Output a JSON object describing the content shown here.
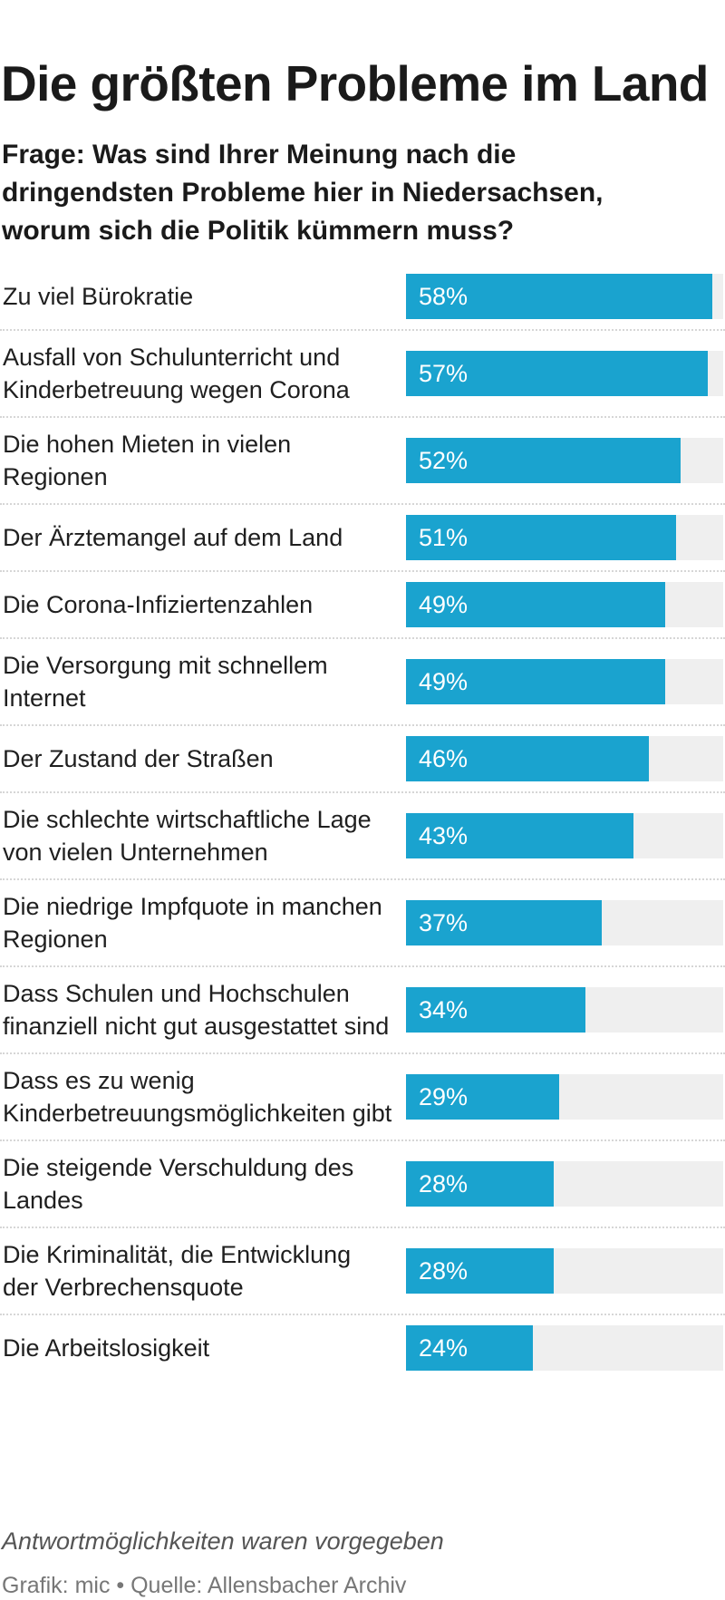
{
  "title": "Die größten Probleme im Land",
  "subtitle": "Frage: Was sind Ihrer Meinung nach die dringendsten Probleme hier in Niedersachsen, worum sich die Politik kümmern muss?",
  "colors": {
    "bar": "#1aa3cf",
    "track": "#efefef"
  },
  "chart_data": {
    "type": "bar",
    "orientation": "horizontal",
    "value_suffix": "%",
    "xlim": [
      0,
      60
    ],
    "categories": [
      "Zu viel Bürokratie",
      "Ausfall von Schulunterricht und Kinderbetreuung wegen Corona",
      "Die hohen Mieten in vielen Regionen",
      "Der Ärztemangel auf dem Land",
      "Die Corona-Infiziertenzahlen",
      "Die Versorgung mit schnellem Internet",
      "Der Zustand der Straßen",
      "Die schlechte wirtschaftliche Lage von vielen Unternehmen",
      "Die niedrige Impfquote in manchen Regionen",
      "Dass Schulen und Hochschulen finanziell nicht gut ausgestattet sind",
      "Dass es zu wenig Kinderbetreuungsmöglichkeiten gibt",
      "Die steigende Verschuldung des Landes",
      "Die Kriminalität, die Entwicklung der Verbrechensquote",
      "Die Arbeitslosigkeit"
    ],
    "values": [
      58,
      57,
      52,
      51,
      49,
      49,
      46,
      43,
      37,
      34,
      29,
      28,
      28,
      24
    ],
    "value_labels": [
      "58%",
      "57%",
      "52%",
      "51%",
      "49%",
      "49%",
      "46%",
      "43%",
      "37%",
      "34%",
      "29%",
      "28%",
      "28%",
      "24%"
    ]
  },
  "footer": {
    "note": "Antwortmöglichkeiten waren vorgegeben",
    "source": "Grafik: mic • Quelle: Allensbacher Archiv"
  }
}
